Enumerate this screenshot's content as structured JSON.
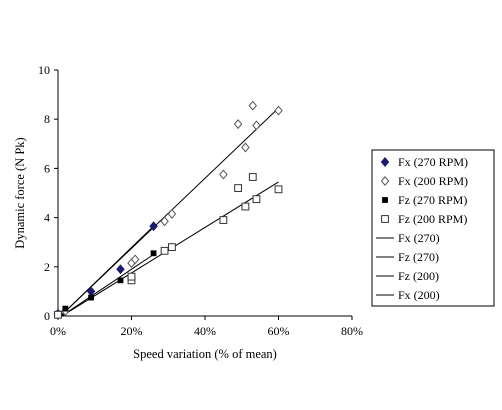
{
  "chart_data": {
    "type": "scatter",
    "title": "",
    "xlabel": "Speed variation (% of mean)",
    "ylabel": "Dynamic force (N Pk)",
    "xlim": [
      0,
      0.8
    ],
    "ylim": [
      0,
      10
    ],
    "x_ticks": [
      "0%",
      "20%",
      "40%",
      "60%",
      "80%"
    ],
    "x_tick_values": [
      0,
      0.2,
      0.4,
      0.6,
      0.8
    ],
    "y_ticks": [
      "0",
      "2",
      "4",
      "6",
      "8",
      "10"
    ],
    "y_tick_values": [
      0,
      2,
      4,
      6,
      8,
      10
    ],
    "grid": false,
    "legend_position": "right",
    "series": [
      {
        "name": "Fx (270 RPM)",
        "marker": "diamond-filled",
        "color": "#1a1a6e",
        "points": [
          [
            0.0,
            0.1
          ],
          [
            0.09,
            1.0
          ],
          [
            0.17,
            1.9
          ],
          [
            0.26,
            3.65
          ]
        ]
      },
      {
        "name": "Fx (200 RPM)",
        "marker": "diamond-open",
        "color": "#555555",
        "points": [
          [
            0.0,
            0.05
          ],
          [
            0.02,
            0.2
          ],
          [
            0.2,
            2.15
          ],
          [
            0.21,
            2.3
          ],
          [
            0.29,
            3.85
          ],
          [
            0.31,
            4.15
          ],
          [
            0.45,
            5.75
          ],
          [
            0.49,
            7.8
          ],
          [
            0.51,
            6.85
          ],
          [
            0.53,
            8.55
          ],
          [
            0.54,
            7.75
          ],
          [
            0.6,
            8.35
          ]
        ]
      },
      {
        "name": "Fz (270 RPM)",
        "marker": "square-filled",
        "color": "#000000",
        "points": [
          [
            0.02,
            0.3
          ],
          [
            0.09,
            0.75
          ],
          [
            0.17,
            1.45
          ],
          [
            0.26,
            2.55
          ]
        ]
      },
      {
        "name": "Fz (200 RPM)",
        "marker": "square-open",
        "color": "#333333",
        "points": [
          [
            0.0,
            0.05
          ],
          [
            0.2,
            1.45
          ],
          [
            0.2,
            1.6
          ],
          [
            0.29,
            2.65
          ],
          [
            0.31,
            2.8
          ],
          [
            0.45,
            3.9
          ],
          [
            0.49,
            5.2
          ],
          [
            0.51,
            4.45
          ],
          [
            0.53,
            5.65
          ],
          [
            0.54,
            4.75
          ],
          [
            0.6,
            5.15
          ]
        ]
      }
    ],
    "trendlines": [
      {
        "name": "Fx (270)",
        "points": [
          [
            0.0,
            -0.1
          ],
          [
            0.26,
            3.65
          ]
        ]
      },
      {
        "name": "Fz (270)",
        "points": [
          [
            0.0,
            -0.1
          ],
          [
            0.26,
            2.5
          ]
        ]
      },
      {
        "name": "Fz (200)",
        "points": [
          [
            0.0,
            -0.1
          ],
          [
            0.6,
            5.45
          ]
        ]
      },
      {
        "name": "Fx (200)",
        "points": [
          [
            0.0,
            -0.1
          ],
          [
            0.6,
            8.45
          ]
        ]
      }
    ]
  }
}
